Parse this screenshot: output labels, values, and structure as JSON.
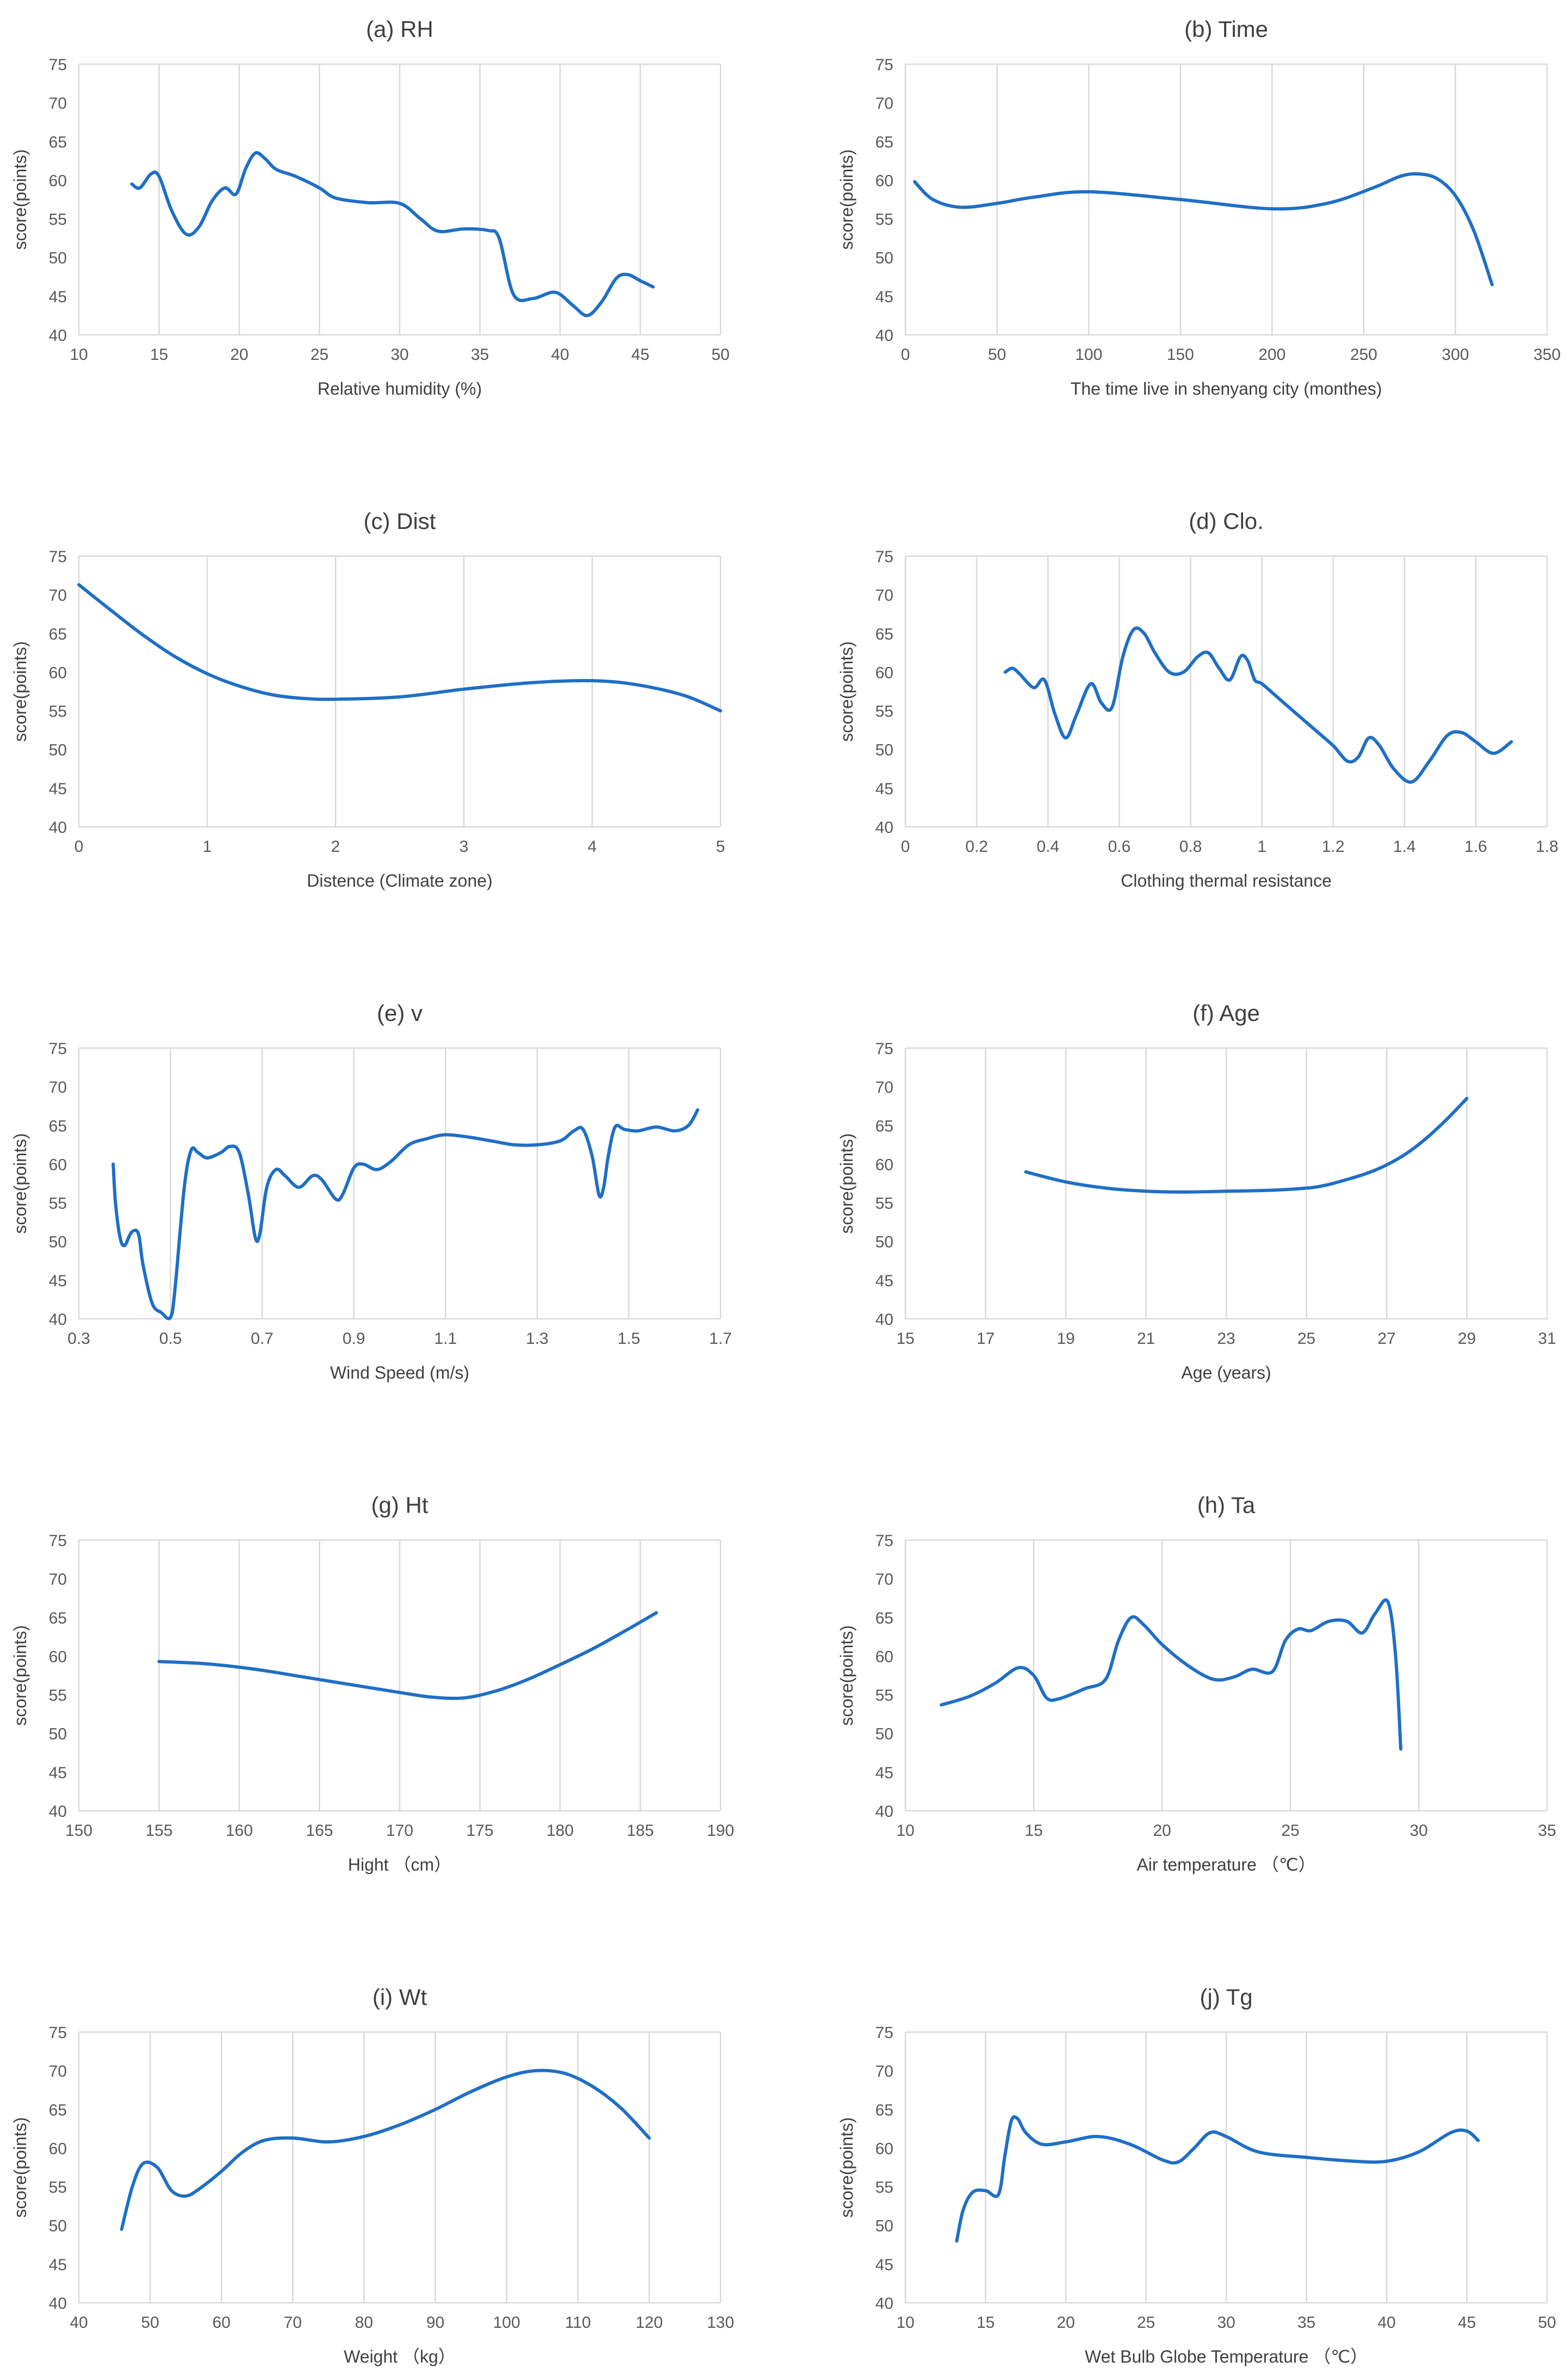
{
  "chart_data": [
    {
      "type": "line",
      "title": "(a) RH",
      "xlabel": "Relative humidity (%)",
      "ylabel": "score(points)",
      "xlim": [
        10,
        50
      ],
      "xticks": [
        10,
        15,
        20,
        25,
        30,
        35,
        40,
        45,
        50
      ],
      "ylim": [
        40,
        75
      ],
      "yticks": [
        40,
        45,
        50,
        55,
        60,
        65,
        70,
        75
      ],
      "grid": "vertical",
      "series": [
        {
          "x": [
            13.3,
            13.8,
            14.5,
            15.0,
            15.8,
            16.7,
            17.5,
            18.3,
            19.1,
            19.8,
            20.4,
            21.0,
            21.6,
            22.3,
            23.5,
            25.0,
            26.0,
            28.0,
            30.0,
            31.3,
            32.4,
            34.0,
            35.5,
            36.2,
            37.1,
            38.3,
            39.7,
            40.8,
            41.7,
            42.6,
            43.5,
            44.2,
            45.0,
            45.8
          ],
          "y": [
            59.5,
            59.0,
            60.8,
            60.5,
            56.0,
            53.0,
            54.0,
            57.3,
            59.0,
            58.2,
            61.5,
            63.5,
            62.8,
            61.4,
            60.5,
            59.0,
            57.7,
            57.1,
            57.0,
            55.0,
            53.4,
            53.7,
            53.5,
            52.5,
            45.2,
            44.7,
            45.5,
            43.8,
            42.5,
            44.3,
            47.3,
            47.8,
            47.0,
            46.2
          ]
        }
      ]
    },
    {
      "type": "line",
      "title": "(b) Time",
      "xlabel": "The time live in shenyang city (monthes)",
      "ylabel": "score(points)",
      "xlim": [
        0,
        350
      ],
      "xticks": [
        0,
        50,
        100,
        150,
        200,
        250,
        300,
        350
      ],
      "ylim": [
        40,
        75
      ],
      "yticks": [
        40,
        45,
        50,
        55,
        60,
        65,
        70,
        75
      ],
      "grid": "vertical",
      "series": [
        {
          "x": [
            5,
            15,
            30,
            50,
            70,
            100,
            150,
            200,
            230,
            255,
            270,
            280,
            290,
            300,
            310,
            320
          ],
          "y": [
            59.8,
            57.5,
            56.5,
            57.0,
            57.8,
            58.5,
            57.5,
            56.3,
            57.0,
            59.0,
            60.5,
            60.8,
            60.2,
            58.0,
            53.5,
            46.5
          ]
        }
      ]
    },
    {
      "type": "line",
      "title": "(c) Dist",
      "xlabel": "Distence (Climate zone)",
      "ylabel": "score(points)",
      "xlim": [
        0,
        5
      ],
      "xticks": [
        0,
        1,
        2,
        3,
        4,
        5
      ],
      "ylim": [
        40,
        75
      ],
      "yticks": [
        40,
        45,
        50,
        55,
        60,
        65,
        70,
        75
      ],
      "grid": "vertical",
      "series": [
        {
          "x": [
            0,
            0.25,
            0.5,
            0.75,
            1.0,
            1.25,
            1.5,
            1.75,
            2.0,
            2.5,
            3.0,
            3.5,
            3.9,
            4.2,
            4.5,
            4.75,
            5.0
          ],
          "y": [
            71.3,
            68.0,
            64.8,
            62.0,
            59.8,
            58.2,
            57.1,
            56.6,
            56.5,
            56.8,
            57.8,
            58.6,
            58.9,
            58.7,
            57.9,
            56.8,
            55.0
          ]
        }
      ]
    },
    {
      "type": "line",
      "title": "(d) Clo.",
      "xlabel": "Clothing thermal resistance",
      "ylabel": "score(points)",
      "xlim": [
        0,
        1.8
      ],
      "xticks": [
        0,
        0.2,
        0.4,
        0.6,
        0.8,
        1,
        1.2,
        1.4,
        1.6,
        1.8
      ],
      "ylim": [
        40,
        75
      ],
      "yticks": [
        40,
        45,
        50,
        55,
        60,
        65,
        70,
        75
      ],
      "grid": "vertical",
      "series": [
        {
          "x": [
            0.28,
            0.3,
            0.32,
            0.36,
            0.39,
            0.42,
            0.45,
            0.48,
            0.52,
            0.55,
            0.58,
            0.61,
            0.64,
            0.67,
            0.7,
            0.74,
            0.78,
            0.82,
            0.85,
            0.88,
            0.91,
            0.94,
            0.96,
            0.98,
            1.0,
            1.05,
            1.1,
            1.15,
            1.2,
            1.24,
            1.27,
            1.3,
            1.33,
            1.37,
            1.42,
            1.47,
            1.52,
            1.56,
            1.6,
            1.65,
            1.7
          ],
          "y": [
            60.0,
            60.5,
            59.8,
            58.0,
            59.0,
            54.5,
            51.5,
            54.5,
            58.5,
            56.0,
            55.5,
            62.0,
            65.5,
            65.0,
            62.5,
            60.0,
            60.0,
            62.0,
            62.5,
            60.5,
            59.0,
            62.0,
            61.5,
            59.0,
            58.5,
            56.5,
            54.5,
            52.5,
            50.5,
            48.5,
            49.0,
            51.5,
            50.5,
            47.5,
            45.8,
            48.5,
            51.8,
            52.2,
            51.0,
            49.5,
            51.0
          ]
        }
      ]
    },
    {
      "type": "line",
      "title": "(e) v",
      "xlabel": "Wind Speed (m/s)",
      "ylabel": "score(points)",
      "xlim": [
        0.3,
        1.7
      ],
      "xticks": [
        0.3,
        0.5,
        0.7,
        0.9,
        1.1,
        1.3,
        1.5,
        1.7
      ],
      "ylim": [
        40,
        75
      ],
      "yticks": [
        40,
        45,
        50,
        55,
        60,
        65,
        70,
        75
      ],
      "grid": "vertical",
      "series": [
        {
          "x": [
            0.375,
            0.38,
            0.39,
            0.4,
            0.415,
            0.43,
            0.44,
            0.46,
            0.48,
            0.5,
            0.51,
            0.53,
            0.545,
            0.56,
            0.58,
            0.61,
            0.63,
            0.65,
            0.67,
            0.685,
            0.695,
            0.71,
            0.73,
            0.75,
            0.78,
            0.81,
            0.83,
            0.86,
            0.875,
            0.9,
            0.92,
            0.95,
            0.98,
            1.02,
            1.06,
            1.1,
            1.15,
            1.2,
            1.25,
            1.3,
            1.35,
            1.38,
            1.4,
            1.42,
            1.435,
            1.445,
            1.455,
            1.47,
            1.49,
            1.52,
            1.56,
            1.6,
            1.63,
            1.65
          ],
          "y": [
            60.0,
            55.0,
            50.5,
            49.5,
            51.2,
            51.0,
            47.0,
            42.0,
            40.8,
            40.2,
            44.0,
            57.0,
            61.8,
            61.5,
            60.8,
            61.5,
            62.3,
            61.5,
            56.0,
            50.5,
            51.0,
            57.0,
            59.3,
            58.5,
            57.0,
            58.5,
            58.0,
            55.5,
            56.0,
            59.5,
            60.0,
            59.3,
            60.3,
            62.5,
            63.3,
            63.8,
            63.5,
            63.0,
            62.5,
            62.5,
            63.0,
            64.3,
            64.5,
            61.0,
            56.0,
            57.0,
            61.0,
            64.8,
            64.5,
            64.3,
            64.8,
            64.3,
            65.0,
            67.0
          ]
        }
      ]
    },
    {
      "type": "line",
      "title": "(f) Age",
      "xlabel": "Age (years)",
      "ylabel": "score(points)",
      "xlim": [
        15,
        31
      ],
      "xticks": [
        15,
        17,
        19,
        21,
        23,
        25,
        27,
        29,
        31
      ],
      "ylim": [
        40,
        75
      ],
      "yticks": [
        40,
        45,
        50,
        55,
        60,
        65,
        70,
        75
      ],
      "grid": "vertical",
      "series": [
        {
          "x": [
            18,
            19,
            20,
            21,
            22,
            23,
            24,
            25,
            25.5,
            26,
            26.5,
            27,
            27.5,
            28,
            28.5,
            29
          ],
          "y": [
            59.0,
            57.7,
            56.9,
            56.5,
            56.4,
            56.5,
            56.6,
            56.9,
            57.3,
            58.0,
            58.8,
            59.9,
            61.4,
            63.4,
            65.8,
            68.5
          ]
        }
      ]
    },
    {
      "type": "line",
      "title": "(g) Ht",
      "xlabel": "Hight （cm）",
      "ylabel": "score(points)",
      "xlim": [
        150,
        190
      ],
      "xticks": [
        150,
        155,
        160,
        165,
        170,
        175,
        180,
        185,
        190
      ],
      "ylim": [
        40,
        75
      ],
      "yticks": [
        40,
        45,
        50,
        55,
        60,
        65,
        70,
        75
      ],
      "grid": "vertical",
      "series": [
        {
          "x": [
            155,
            158,
            161,
            164,
            167,
            170,
            172,
            174,
            176,
            178,
            180,
            182,
            184,
            186
          ],
          "y": [
            59.3,
            59.0,
            58.3,
            57.3,
            56.3,
            55.3,
            54.7,
            54.6,
            55.5,
            57.0,
            58.9,
            60.9,
            63.2,
            65.6
          ]
        }
      ]
    },
    {
      "type": "line",
      "title": "(h) Ta",
      "xlabel": "Air temperature （℃）",
      "ylabel": "score(points)",
      "xlim": [
        10,
        35
      ],
      "xticks": [
        10,
        15,
        20,
        25,
        30,
        35
      ],
      "ylim": [
        40,
        75
      ],
      "yticks": [
        40,
        45,
        50,
        55,
        60,
        65,
        70,
        75
      ],
      "grid": "vertical",
      "series": [
        {
          "x": [
            11.4,
            12.5,
            13.5,
            14.4,
            15.0,
            15.5,
            16.0,
            17.0,
            17.8,
            18.3,
            18.8,
            19.3,
            20.0,
            21.0,
            22.0,
            22.8,
            23.5,
            24.3,
            24.8,
            25.3,
            25.8,
            26.5,
            27.2,
            27.8,
            28.3,
            28.8,
            29.1,
            29.3
          ],
          "y": [
            53.7,
            54.8,
            56.5,
            58.5,
            57.5,
            54.6,
            54.5,
            55.8,
            57.0,
            62.0,
            65.0,
            64.0,
            61.5,
            58.8,
            57.0,
            57.3,
            58.3,
            58.0,
            62.0,
            63.5,
            63.3,
            64.5,
            64.5,
            63.0,
            65.5,
            67.0,
            60.0,
            48.0
          ]
        }
      ]
    },
    {
      "type": "line",
      "title": "(i) Wt",
      "xlabel": "Weight （kg）",
      "ylabel": "score(points)",
      "xlim": [
        40,
        130
      ],
      "xticks": [
        40,
        50,
        60,
        70,
        80,
        90,
        100,
        110,
        120,
        130
      ],
      "ylim": [
        40,
        75
      ],
      "yticks": [
        40,
        45,
        50,
        55,
        60,
        65,
        70,
        75
      ],
      "grid": "vertical",
      "series": [
        {
          "x": [
            46,
            47.5,
            49,
            51,
            53,
            55,
            57,
            60,
            63,
            66,
            70,
            75,
            80,
            85,
            90,
            95,
            100,
            104,
            108,
            112,
            116,
            120
          ],
          "y": [
            49.5,
            55.0,
            58.0,
            57.5,
            54.5,
            53.8,
            54.8,
            57.0,
            59.5,
            61.0,
            61.3,
            60.8,
            61.5,
            63.0,
            65.0,
            67.3,
            69.2,
            70.0,
            69.7,
            68.0,
            65.2,
            61.3
          ]
        }
      ]
    },
    {
      "type": "line",
      "title": "(j) Tg",
      "xlabel": "Wet Bulb Globe Temperature （℃）",
      "ylabel": "score(points)",
      "xlim": [
        10,
        50
      ],
      "xticks": [
        10,
        15,
        20,
        25,
        30,
        35,
        40,
        45,
        50
      ],
      "ylim": [
        40,
        75
      ],
      "yticks": [
        40,
        45,
        50,
        55,
        60,
        65,
        70,
        75
      ],
      "grid": "vertical",
      "series": [
        {
          "x": [
            13.2,
            13.6,
            14.2,
            15.0,
            15.8,
            16.2,
            16.6,
            17.0,
            17.5,
            18.5,
            20.0,
            22.0,
            24.0,
            26.0,
            27.0,
            28.0,
            29.0,
            30.0,
            32.0,
            35.0,
            38.0,
            40.0,
            42.0,
            44.0,
            45.0,
            45.7
          ],
          "y": [
            48.0,
            52.0,
            54.3,
            54.5,
            54.0,
            59.0,
            63.5,
            63.8,
            62.0,
            60.5,
            60.8,
            61.5,
            60.5,
            58.5,
            58.2,
            60.0,
            62.0,
            61.5,
            59.5,
            58.8,
            58.3,
            58.3,
            59.5,
            62.0,
            62.2,
            61.0
          ]
        }
      ]
    }
  ]
}
